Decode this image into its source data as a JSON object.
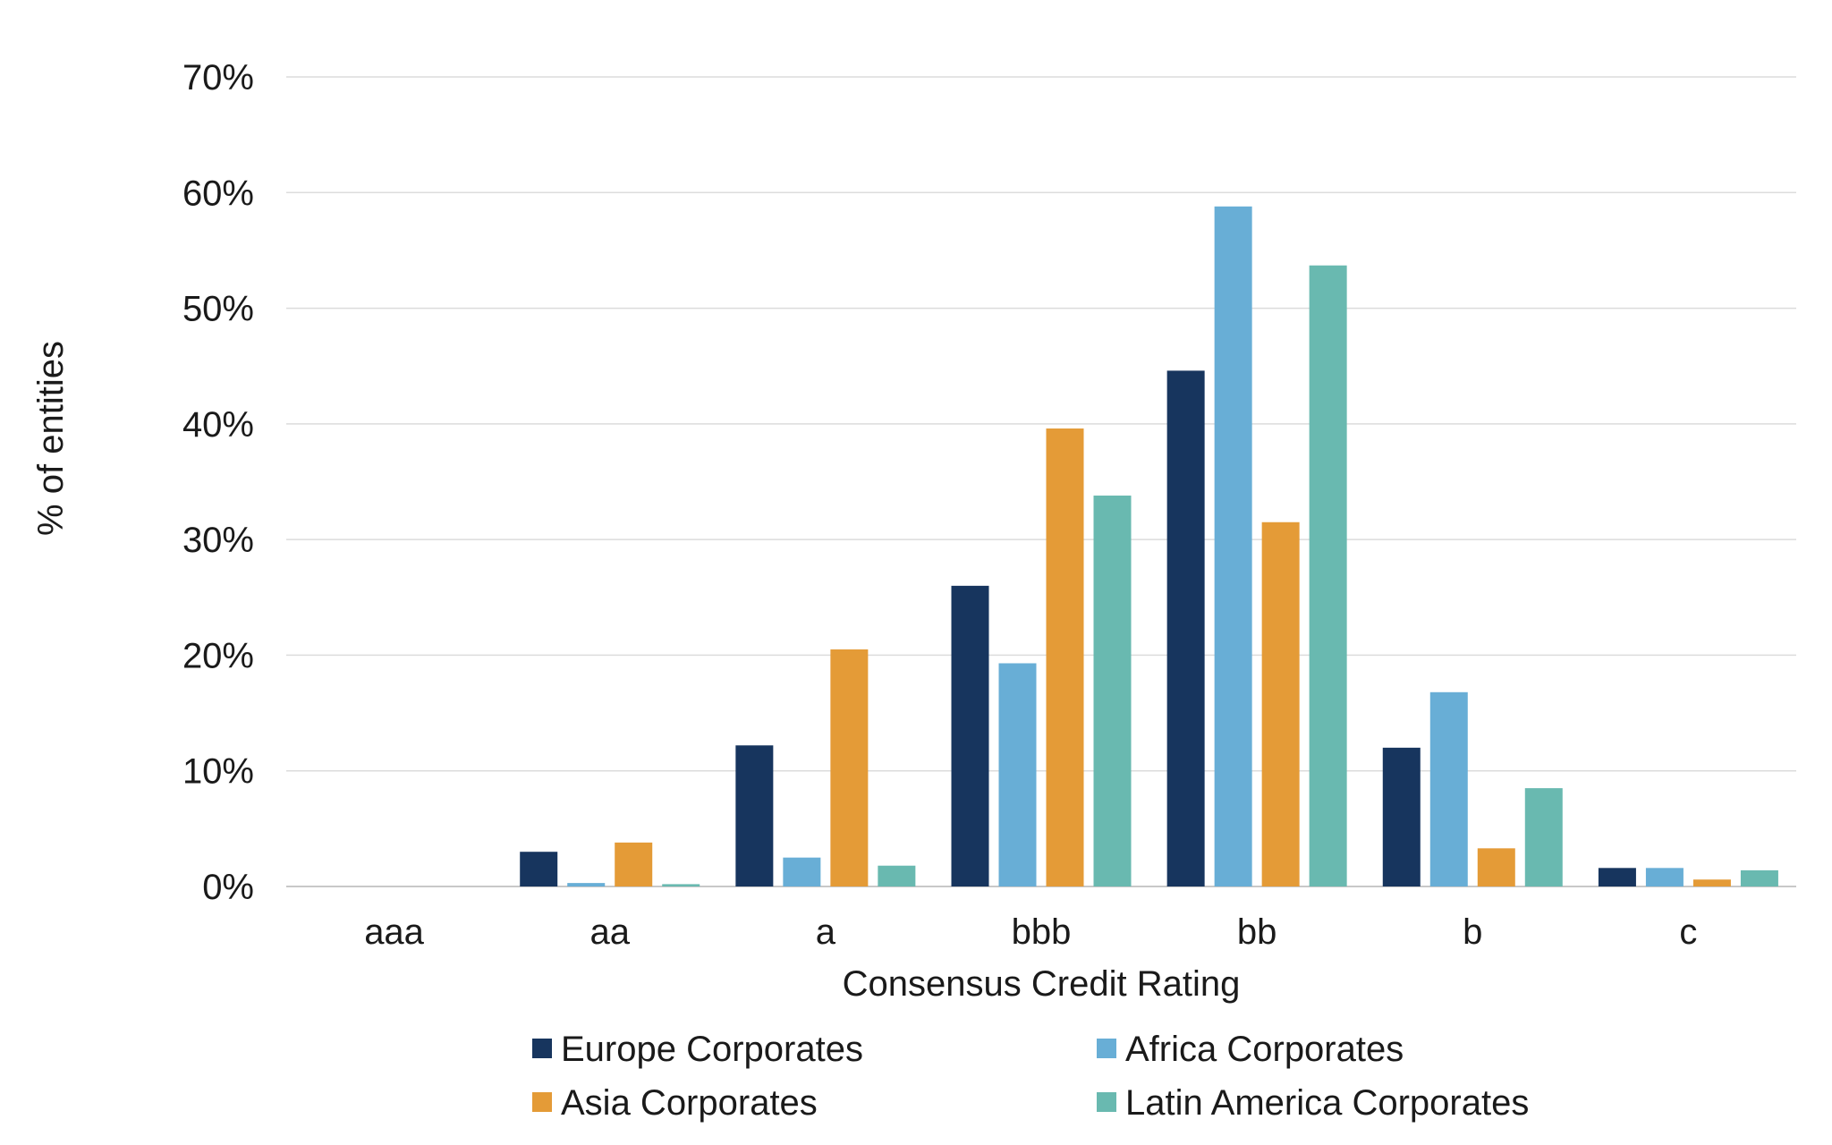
{
  "chart_data": {
    "type": "bar",
    "xlabel": "Consensus Credit Rating",
    "ylabel": "% of entities",
    "ylim": [
      0,
      70
    ],
    "yticks": [
      0,
      10,
      20,
      30,
      40,
      50,
      60,
      70
    ],
    "ytick_suffix": "%",
    "grid": true,
    "legend_position": "bottom",
    "categories": [
      "aaa",
      "aa",
      "a",
      "bbb",
      "bb",
      "b",
      "c"
    ],
    "series": [
      {
        "name": "Europe Corporates",
        "color": "#17355e",
        "values": [
          0,
          3.0,
          12.2,
          26.0,
          44.6,
          12.0,
          1.6
        ]
      },
      {
        "name": "Africa Corporates",
        "color": "#68aed6",
        "values": [
          0,
          0.3,
          2.5,
          19.3,
          58.8,
          16.8,
          1.6
        ]
      },
      {
        "name": "Asia Corporates",
        "color": "#e49b37",
        "values": [
          0,
          3.8,
          20.5,
          39.6,
          31.5,
          3.3,
          0.6
        ]
      },
      {
        "name": "Latin America Corporates",
        "color": "#69b9b0",
        "values": [
          0,
          0.2,
          1.8,
          33.8,
          53.7,
          8.5,
          1.4
        ]
      }
    ]
  }
}
